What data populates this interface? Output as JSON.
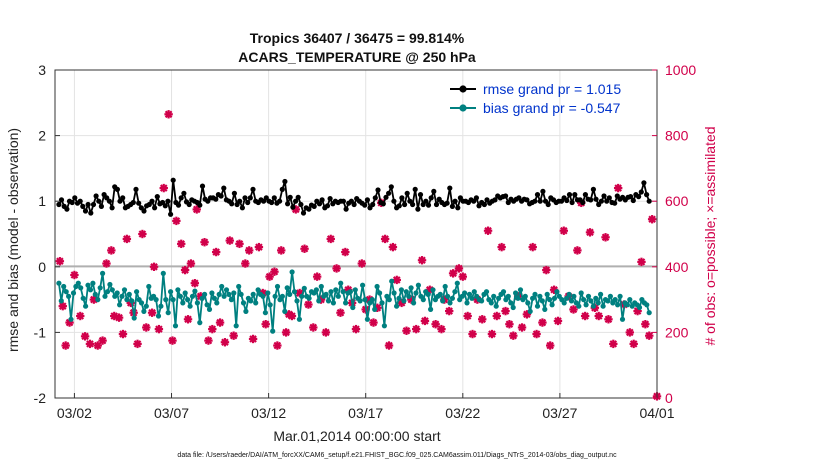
{
  "chart_data": {
    "type": "line",
    "title_line1": "Tropics 36407 / 36475 = 99.814%",
    "title_line2": "ACARS_TEMPERATURE @ 250 hPa",
    "xlabel": "Mar.01,2014 00:00:00 start",
    "ylabel_left": "rmse and bias (model - observation)",
    "ylabel_right": "# of obs: o=possible; ×=assimilated",
    "x_tick_labels": [
      "03/02",
      "03/07",
      "03/12",
      "03/17",
      "03/22",
      "03/27",
      "04/01"
    ],
    "x_tick_days": [
      1,
      6,
      11,
      16,
      21,
      26,
      31
    ],
    "xlim_days": [
      0,
      31
    ],
    "ylim_left": [
      -2,
      3
    ],
    "y_ticks_left": [
      "-2",
      "-1",
      "0",
      "1",
      "2",
      "3"
    ],
    "ylim_right": [
      0,
      1000
    ],
    "y_ticks_right": [
      "0",
      "200",
      "400",
      "600",
      "800",
      "1000"
    ],
    "grid": true,
    "legend_position": "top-right",
    "series": [
      {
        "name": "rmse grand pr = 1.015",
        "axis": "left",
        "color": "#000000",
        "values": [
          0.95,
          1.02,
          0.92,
          0.88,
          1.0,
          0.98,
          1.05,
          0.97,
          1.0,
          0.92,
          0.85,
          0.95,
          0.82,
          0.95,
          1.08,
          1.0,
          0.92,
          1.1,
          1.05,
          1.0,
          0.9,
          1.22,
          1.18,
          1.0,
          1.05,
          0.9,
          0.92,
          0.95,
          0.98,
          1.18,
          0.97,
          0.9,
          0.85,
          0.93,
          0.95,
          1.0,
          0.9,
          1.07,
          0.96,
          0.98,
          0.93,
          1.0,
          0.8,
          1.32,
          0.98,
          0.94,
          1.05,
          1.12,
          0.99,
          0.95,
          1.02,
          1.0,
          0.98,
          0.94,
          1.23,
          1.03,
          1.0,
          1.05,
          1.05,
          1.03,
          1.1,
          1.08,
          1.2,
          1.02,
          1.0,
          0.96,
          1.12,
          0.95,
          1.0,
          0.9,
          1.05,
          0.98,
          1.05,
          1.18,
          1.0,
          0.98,
          1.02,
          1.0,
          1.05,
          1.0,
          0.98,
          1.05,
          0.97,
          1.0,
          1.18,
          1.3,
          0.96,
          1.06,
          0.91,
          1.0,
          1.06,
          0.95,
          0.82,
          0.9,
          0.88,
          0.94,
          0.92,
          1.0,
          0.96,
          1.02,
          0.9,
          0.93,
          1.04,
          0.96,
          1.0,
          0.98,
          1.0,
          1.0,
          0.88,
          0.97,
          1.0,
          0.95,
          1.04,
          1.0,
          0.97,
          0.94,
          1.02,
          0.9,
          0.95,
          1.05,
          1.17,
          0.98,
          0.96,
          1.06,
          1.12,
          1.22,
          1.0,
          0.9,
          0.93,
          1.05,
          0.95,
          1.12,
          1.0,
          0.95,
          1.18,
          0.88,
          1.1,
          0.95,
          1.0,
          0.94,
          1.05,
          1.15,
          0.95,
          1.03,
          0.98,
          0.95,
          0.97,
          1.2,
          0.92,
          1.0,
          0.9,
          1.05,
          1.0,
          1.0,
          0.98,
          1.02,
          1.0,
          1.05,
          0.93,
          0.98,
          0.95,
          1.02,
          0.97,
          1.0,
          1.02,
          1.08,
          1.05,
          1.07,
          1.08,
          0.98,
          1.03,
          1.0,
          1.03,
          1.05,
          1.0,
          1.03,
          1.02,
          0.96,
          0.98,
          1.0,
          1.1,
          1.0,
          1.15,
          1.0,
          0.95,
          1.05,
          1.02,
          0.98,
          1.0,
          1.0,
          1.05,
          1.01,
          1.1,
          0.98,
          1.1,
          1.02,
          1.02,
          0.98,
          1.1,
          1.03,
          1.02,
          1.18,
          1.03,
          0.95,
          1.0,
          1.08,
          1.0,
          1.05,
          0.98,
          0.97,
          1.08,
          1.03,
          1.06,
          1.02,
          1.06,
          1.07,
          1.01,
          1.1,
          1.07,
          1.14,
          1.28,
          1.1,
          1.0
        ]
      },
      {
        "name": "bias grand pr = -0.547",
        "axis": "left",
        "color": "#008080",
        "values": [
          -0.25,
          -0.52,
          -0.3,
          -0.38,
          -0.45,
          -0.8,
          -0.4,
          -0.3,
          -0.25,
          -0.32,
          -0.48,
          -0.6,
          -0.28,
          -0.35,
          -0.25,
          -0.42,
          -0.5,
          -0.32,
          -0.1,
          -0.45,
          -0.38,
          -0.27,
          -0.35,
          -0.45,
          -0.4,
          -0.58,
          -0.45,
          -0.35,
          -0.5,
          -0.42,
          -0.52,
          -0.78,
          -0.38,
          -0.5,
          -0.55,
          -0.68,
          -0.6,
          -0.3,
          -0.48,
          -0.45,
          -0.5,
          -0.75,
          -0.6,
          -0.1,
          -0.5,
          -0.7,
          -0.38,
          -0.5,
          -0.9,
          -0.35,
          -0.45,
          -0.55,
          -0.4,
          -0.5,
          -0.6,
          -0.45,
          -0.37,
          -0.55,
          -0.85,
          -0.48,
          -0.42,
          -0.58,
          -0.65,
          -0.4,
          -0.48,
          -0.55,
          -0.42,
          -0.3,
          -0.45,
          -0.35,
          -0.42,
          -0.5,
          -0.4,
          -0.9,
          -0.3,
          -0.42,
          -0.55,
          -0.68,
          -0.48,
          -0.52,
          -0.42,
          -0.55,
          -0.35,
          -0.42,
          -0.45,
          -0.7,
          -0.4,
          -0.58,
          -0.98,
          -0.45,
          -0.3,
          -0.5,
          -0.45,
          -0.68,
          -0.32,
          -0.42,
          -0.08,
          -0.38,
          -0.52,
          -0.8,
          -0.45,
          -0.33,
          -0.45,
          -0.48,
          -0.38,
          -0.4,
          -0.35,
          -0.52,
          -0.3,
          -0.45,
          -0.42,
          -0.52,
          -0.38,
          -0.55,
          -0.35,
          -0.45,
          -0.25,
          -0.38,
          -0.55,
          -0.4,
          -0.38,
          -0.62,
          -0.35,
          -0.48,
          -0.52,
          -0.28,
          -0.5,
          -0.8,
          -0.55,
          -0.5,
          -0.65,
          -0.3,
          -0.4,
          -0.55,
          -0.9,
          -0.45,
          -0.5,
          -0.22,
          -0.4,
          -0.6,
          -0.48,
          -0.35,
          -0.52,
          -0.38,
          -0.45,
          -0.32,
          -0.55,
          -0.4,
          -0.28,
          -0.45,
          -0.5,
          -0.38,
          -0.42,
          -0.65,
          -0.35,
          -0.5,
          -0.45,
          -0.42,
          -0.52,
          -0.3,
          -0.45,
          -0.55,
          -0.48,
          -0.38,
          -0.25,
          -0.5,
          -0.45,
          -0.4,
          -0.55,
          -0.42,
          -0.48,
          -0.38,
          -0.45,
          -0.5,
          -0.52,
          -0.42,
          -0.38,
          -0.5,
          -0.55,
          -0.45,
          -0.6,
          -0.48,
          -0.42,
          -0.38,
          -0.5,
          -0.45,
          -0.55,
          -0.62,
          -0.4,
          -0.48,
          -0.35,
          -0.5,
          -0.45,
          -0.55,
          -0.68,
          -0.48,
          -0.42,
          -0.6,
          -0.45,
          -0.52,
          -0.65,
          -0.42,
          -0.5,
          -0.58,
          -0.48,
          -0.38,
          -0.45,
          -0.5,
          -0.55,
          -0.48,
          -0.42,
          -0.52,
          -0.45,
          -0.55,
          -0.6,
          -0.4,
          -0.5,
          -0.58,
          -0.45,
          -0.52,
          -0.6,
          -0.48,
          -0.55,
          -0.42,
          -0.6,
          -0.5,
          -0.52,
          -0.45,
          -0.55,
          -0.5,
          -0.58,
          -0.45,
          -0.8,
          -0.55,
          -0.58,
          -0.5,
          -0.6,
          -0.55,
          -0.58,
          -0.62,
          -0.5,
          -0.55,
          -0.58,
          -0.7
        ]
      },
      {
        "name": "# of obs assimilated",
        "axis": "right",
        "color": "#d1004a",
        "marker": "x",
        "points": [
          [
            0.25,
            417
          ],
          [
            0.4,
            280
          ],
          [
            0.55,
            160
          ],
          [
            0.75,
            230
          ],
          [
            1.0,
            375
          ],
          [
            1.3,
            250
          ],
          [
            1.55,
            188
          ],
          [
            1.8,
            165
          ],
          [
            2.0,
            300
          ],
          [
            2.2,
            160
          ],
          [
            2.45,
            175
          ],
          [
            2.65,
            410
          ],
          [
            2.9,
            450
          ],
          [
            3.05,
            250
          ],
          [
            3.3,
            245
          ],
          [
            3.5,
            195
          ],
          [
            3.7,
            485
          ],
          [
            3.9,
            290
          ],
          [
            4.05,
            260
          ],
          [
            4.25,
            165
          ],
          [
            4.5,
            500
          ],
          [
            4.7,
            215
          ],
          [
            5.0,
            260
          ],
          [
            5.1,
            400
          ],
          [
            5.35,
            210
          ],
          [
            5.6,
            640
          ],
          [
            5.85,
            865
          ],
          [
            6.05,
            175
          ],
          [
            6.25,
            540
          ],
          [
            6.5,
            470
          ],
          [
            6.7,
            390
          ],
          [
            6.85,
            240
          ],
          [
            7.0,
            410
          ],
          [
            7.2,
            350
          ],
          [
            7.3,
            575
          ],
          [
            7.5,
            310
          ],
          [
            7.7,
            475
          ],
          [
            7.9,
            175
          ],
          [
            8.1,
            210
          ],
          [
            8.3,
            445
          ],
          [
            8.5,
            230
          ],
          [
            8.75,
            170
          ],
          [
            9.0,
            480
          ],
          [
            9.2,
            190
          ],
          [
            9.5,
            470
          ],
          [
            9.8,
            410
          ],
          [
            10.0,
            450
          ],
          [
            10.2,
            180
          ],
          [
            10.5,
            460
          ],
          [
            10.7,
            320
          ],
          [
            10.85,
            225
          ],
          [
            11.05,
            370
          ],
          [
            11.3,
            385
          ],
          [
            11.45,
            160
          ],
          [
            11.65,
            450
          ],
          [
            11.9,
            200
          ],
          [
            12.05,
            255
          ],
          [
            12.2,
            250
          ],
          [
            12.4,
            575
          ],
          [
            12.6,
            320
          ],
          [
            12.85,
            455
          ],
          [
            13.05,
            285
          ],
          [
            13.3,
            215
          ],
          [
            13.5,
            370
          ],
          [
            13.7,
            300
          ],
          [
            13.95,
            200
          ],
          [
            14.2,
            485
          ],
          [
            14.5,
            395
          ],
          [
            14.7,
            260
          ],
          [
            14.95,
            445
          ],
          [
            15.1,
            330
          ],
          [
            15.3,
            290
          ],
          [
            15.5,
            210
          ],
          [
            15.8,
            410
          ],
          [
            16.0,
            270
          ],
          [
            16.2,
            300
          ],
          [
            16.4,
            230
          ],
          [
            16.6,
            275
          ],
          [
            16.8,
            595
          ],
          [
            17.0,
            485
          ],
          [
            17.2,
            160
          ],
          [
            17.4,
            460
          ],
          [
            17.6,
            360
          ],
          [
            17.85,
            290
          ],
          [
            18.1,
            205
          ],
          [
            18.35,
            300
          ],
          [
            18.6,
            210
          ],
          [
            18.9,
            420
          ],
          [
            19.05,
            235
          ],
          [
            19.3,
            330
          ],
          [
            19.6,
            225
          ],
          [
            19.9,
            210
          ],
          [
            20.05,
            300
          ],
          [
            20.3,
            265
          ],
          [
            20.5,
            380
          ],
          [
            20.8,
            395
          ],
          [
            21.0,
            370
          ],
          [
            21.25,
            250
          ],
          [
            21.5,
            195
          ],
          [
            21.75,
            300
          ],
          [
            22.0,
            240
          ],
          [
            22.3,
            510
          ],
          [
            22.5,
            195
          ],
          [
            22.75,
            250
          ],
          [
            23.0,
            460
          ],
          [
            23.2,
            265
          ],
          [
            23.4,
            225
          ],
          [
            23.6,
            190
          ],
          [
            23.85,
            310
          ],
          [
            24.05,
            215
          ],
          [
            24.3,
            255
          ],
          [
            24.6,
            460
          ],
          [
            24.8,
            195
          ],
          [
            25.1,
            230
          ],
          [
            25.3,
            390
          ],
          [
            25.5,
            160
          ],
          [
            25.7,
            330
          ],
          [
            25.9,
            235
          ],
          [
            26.2,
            510
          ],
          [
            26.45,
            310
          ],
          [
            26.7,
            270
          ],
          [
            26.9,
            450
          ],
          [
            27.1,
            595
          ],
          [
            27.3,
            250
          ],
          [
            27.55,
            505
          ],
          [
            27.8,
            275
          ],
          [
            28.0,
            250
          ],
          [
            28.35,
            490
          ],
          [
            28.5,
            240
          ],
          [
            28.75,
            165
          ],
          [
            29.0,
            640
          ],
          [
            29.3,
            285
          ],
          [
            29.6,
            200
          ],
          [
            29.8,
            165
          ],
          [
            30.0,
            265
          ],
          [
            30.2,
            415
          ],
          [
            30.4,
            225
          ],
          [
            30.6,
            190
          ],
          [
            30.75,
            545
          ],
          [
            31.0,
            5
          ]
        ]
      }
    ],
    "footer_note": "data file: /Users/raeder/DAI/ATM_forcXX/CAM6_setup/f.e21.FHIST_BGC.f09_025.CAM6assim.011/Diags_NTrS_2014-03/obs_diag_output.nc"
  }
}
